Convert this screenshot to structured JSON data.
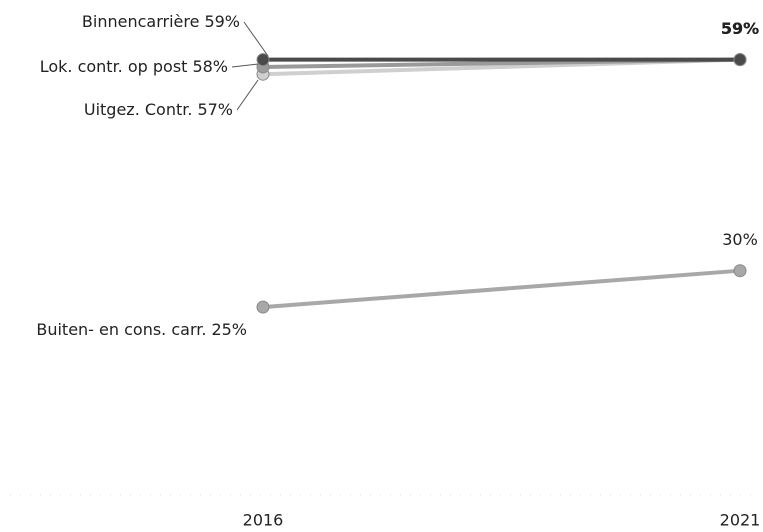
{
  "chart_data": {
    "type": "line",
    "categories": [
      "2016",
      "2021"
    ],
    "ylim": [
      0,
      65
    ],
    "series": [
      {
        "name": "Binnencarrière",
        "color": "#4a4a4a",
        "values": [
          59,
          59
        ],
        "value_labels": [
          "59%",
          "59%"
        ]
      },
      {
        "name": "Lok. contr. op post",
        "color": "#9a9a9a",
        "values": [
          58,
          59
        ],
        "value_labels": [
          "58%",
          "59%"
        ]
      },
      {
        "name": "Uitgez. Contr.",
        "color": "#cfcfcf",
        "values": [
          57,
          59
        ],
        "value_labels": [
          "57%",
          "59%"
        ]
      },
      {
        "name": "Buiten- en cons. carr.",
        "color": "#a8a8a8",
        "values": [
          25,
          30
        ],
        "value_labels": [
          "25%",
          "30%"
        ]
      }
    ]
  }
}
